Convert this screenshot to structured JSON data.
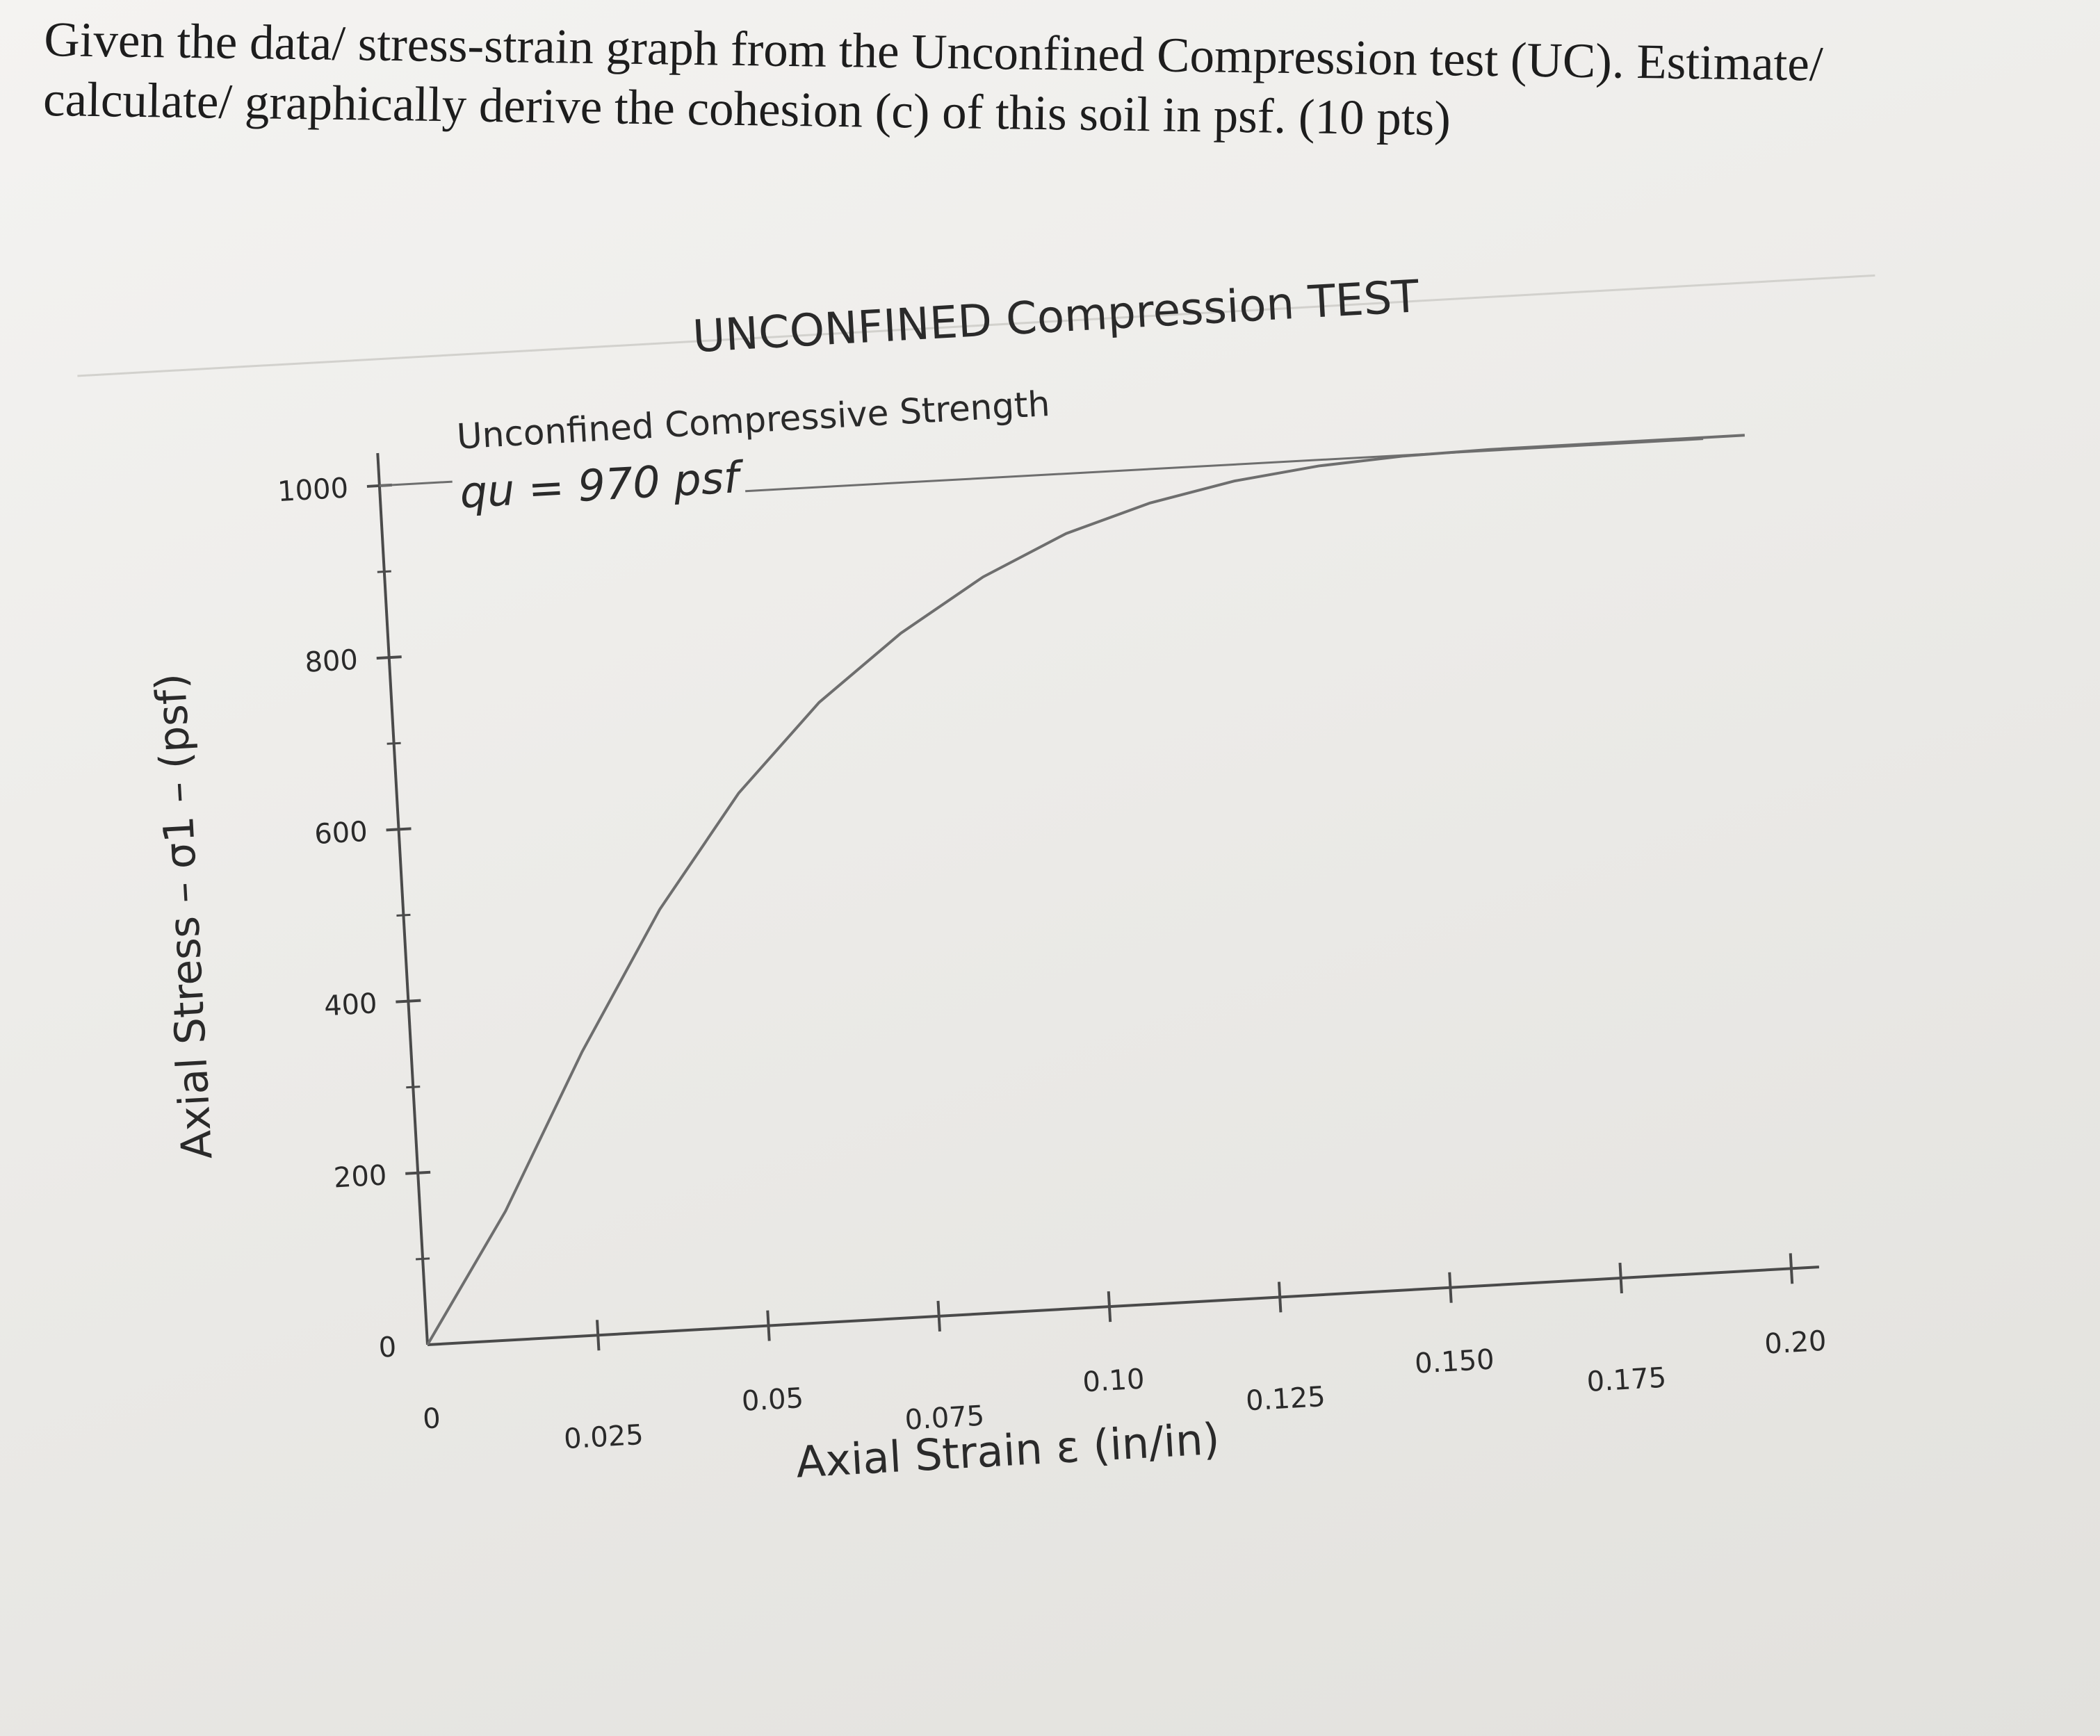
{
  "question": {
    "line1": "Given the data/ stress-strain graph from the Unconfined Compression test (UC). Estimate/",
    "line2": "calculate/ graphically derive the cohesion (c) of this soil in psf. (10 pts)"
  },
  "chart_data": {
    "type": "line",
    "title": "UNCONFINED Compression TEST",
    "xlabel": "Axial Strain ε (in/in)",
    "ylabel": "Axial Stress – σ1 – (psf)",
    "x_ticks": [
      "0",
      "0.025",
      "0.05",
      "0.075",
      "0.10",
      "0.125",
      "0.150",
      "0.175",
      "0.20"
    ],
    "y_ticks": [
      "0",
      "200",
      "400",
      "600",
      "800",
      "1000"
    ],
    "xlim": [
      0,
      0.2
    ],
    "ylim": [
      0,
      1000
    ],
    "series": [
      {
        "x": [
          0,
          0.0125,
          0.025,
          0.0375,
          0.05,
          0.0625,
          0.075,
          0.0875,
          0.1,
          0.1125,
          0.125,
          0.1375,
          0.15,
          0.1625,
          0.175,
          0.1875,
          0.2
        ],
        "y": [
          0,
          150,
          330,
          490,
          620,
          720,
          795,
          855,
          900,
          930,
          950,
          962,
          968,
          970,
          970,
          970,
          970
        ]
      }
    ],
    "annotation": {
      "line1": "Unconfined Compressive Strength",
      "line2": "qu = 970 psf",
      "value": 970
    },
    "colors": {
      "curve": "#6e6e6e",
      "axis": "#4a4a4a",
      "ink": "#2a2a2a"
    }
  }
}
